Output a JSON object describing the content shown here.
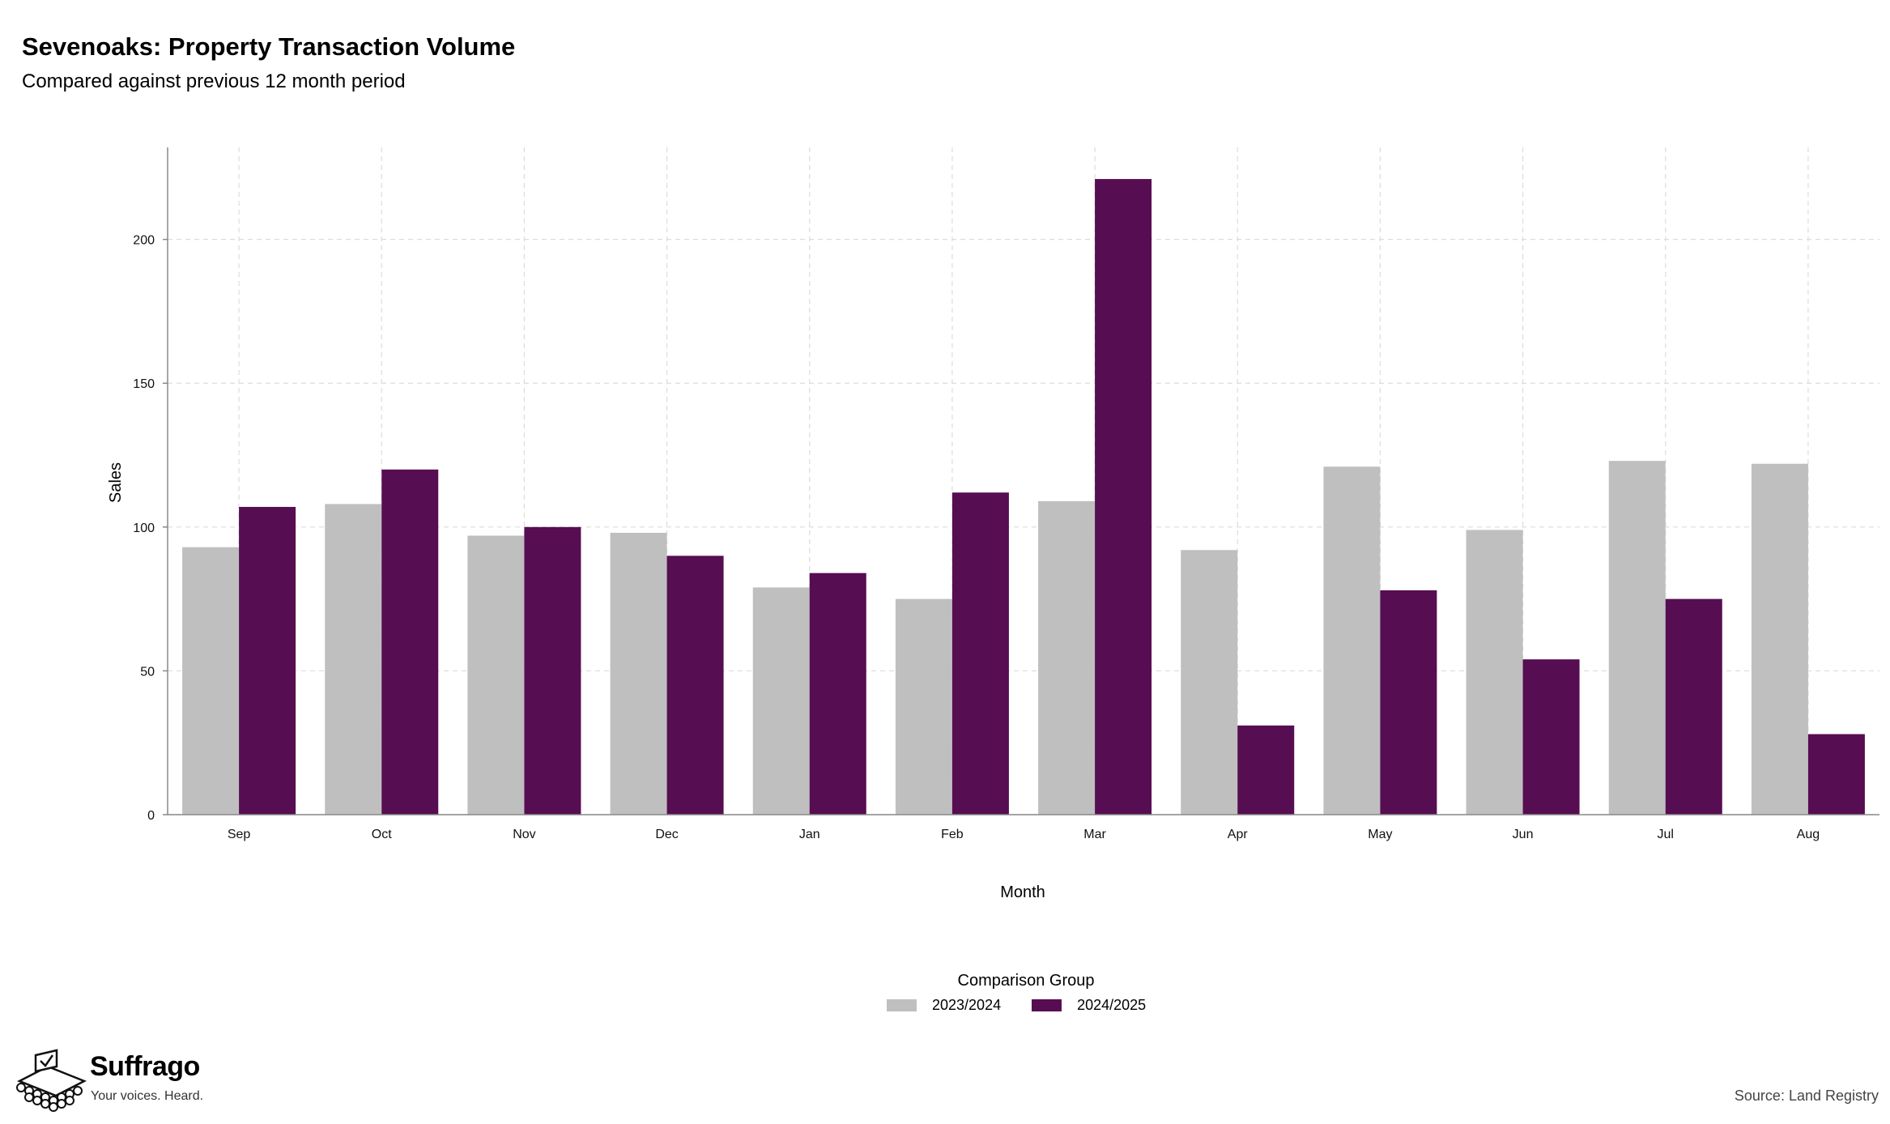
{
  "header": {
    "title": "Sevenoaks: Property Transaction Volume",
    "subtitle": "Compared against previous 12 month period"
  },
  "chart_data": {
    "type": "bar",
    "categories": [
      "Sep",
      "Oct",
      "Nov",
      "Dec",
      "Jan",
      "Feb",
      "Mar",
      "Apr",
      "May",
      "Jun",
      "Jul",
      "Aug"
    ],
    "series": [
      {
        "name": "2023/2024",
        "color": "#bfbfbf",
        "values": [
          93,
          108,
          97,
          98,
          79,
          75,
          109,
          92,
          121,
          99,
          123,
          122
        ]
      },
      {
        "name": "2024/2025",
        "color": "#570d52",
        "values": [
          107,
          120,
          100,
          90,
          84,
          112,
          221,
          31,
          78,
          54,
          75,
          28
        ]
      }
    ],
    "xlabel": "Month",
    "ylabel": "Sales",
    "ylim": [
      0,
      232
    ],
    "yticks": [
      0,
      50,
      100,
      150,
      200
    ],
    "grid": true,
    "legend": {
      "title": "Comparison Group",
      "position": "bottom"
    }
  },
  "footer": {
    "brand": "Suffrago",
    "tagline": "Your voices. Heard.",
    "source": "Source: Land Registry"
  },
  "logo_icon": "ballot-box-icon"
}
